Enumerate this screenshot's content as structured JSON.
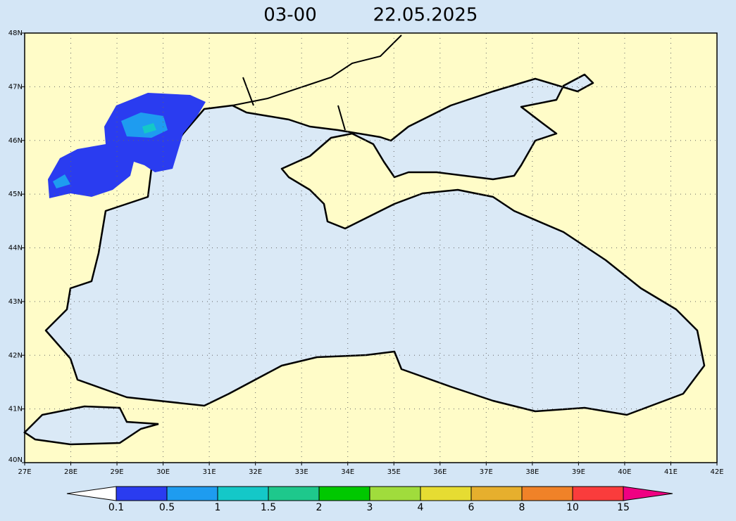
{
  "header": {
    "time": "03-00",
    "date": "22.05.2025"
  },
  "map": {
    "lat_labels": [
      "48N",
      "47N",
      "46N",
      "45N",
      "44N",
      "43N",
      "42N",
      "41N",
      "40N"
    ],
    "lon_labels": [
      "27E",
      "28E",
      "29E",
      "30E",
      "31E",
      "32E",
      "33E",
      "34E",
      "35E",
      "36E",
      "37E",
      "38E",
      "39E",
      "40E",
      "41E",
      "42E"
    ]
  },
  "colorbar": {
    "levels": [
      0.1,
      0.5,
      1,
      1.5,
      2,
      3,
      4,
      6,
      8,
      10,
      15
    ],
    "colors": [
      "#ffffff",
      "#2a3cf0",
      "#1e9cf0",
      "#14c8c8",
      "#1ec88c",
      "#00c800",
      "#a0dc3c",
      "#e6dc32",
      "#e6af2d",
      "#f08228",
      "#fa3c3c",
      "#f00082"
    ]
  }
}
